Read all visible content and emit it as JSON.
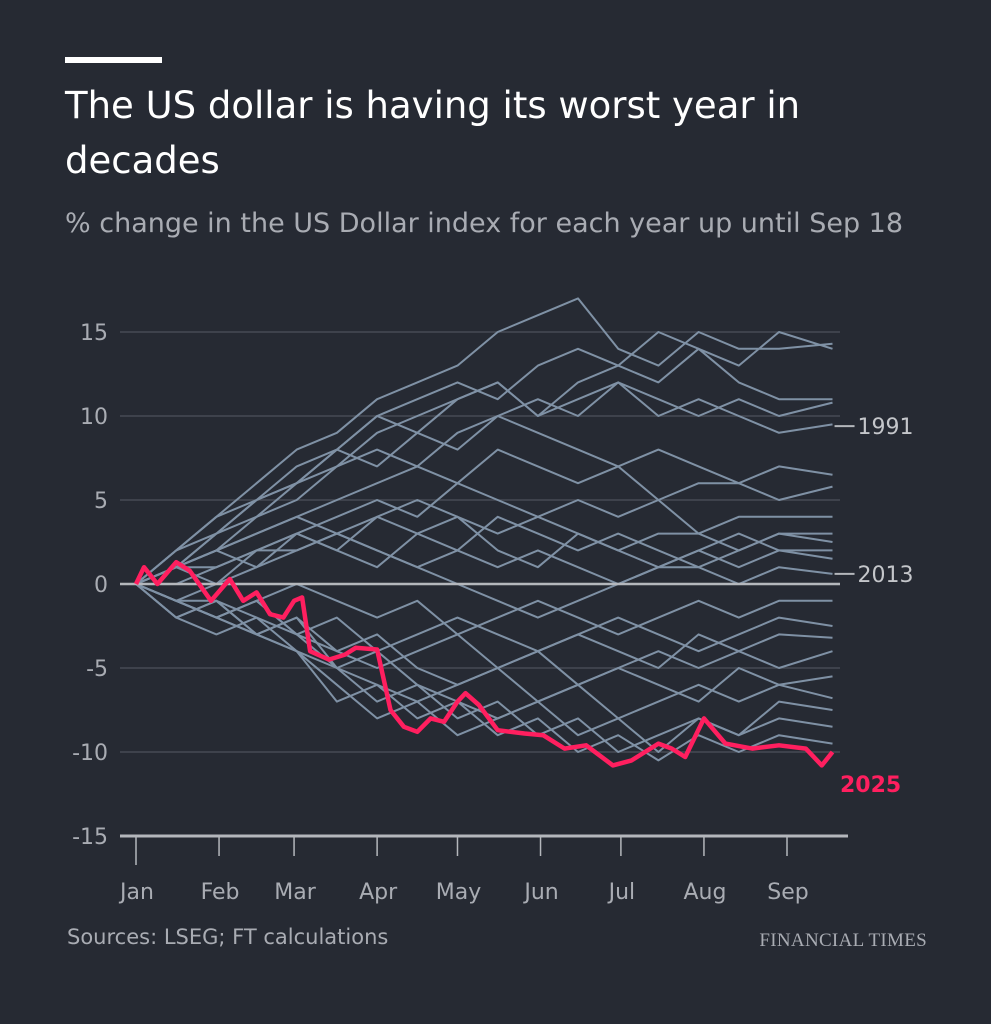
{
  "chart_data": {
    "type": "line",
    "title": "The US dollar is having its worst year in decades",
    "subtitle": "% change in the US Dollar index for each year up until Sep 18",
    "xlabel": "",
    "ylabel": "",
    "x_unit": "day of year",
    "xlim": [
      0,
      260
    ],
    "ylim": [
      -15,
      17
    ],
    "grid": true,
    "yticks": [
      15,
      10,
      5,
      0,
      -5,
      -10,
      -15
    ],
    "xticks": [
      {
        "label": "Jan",
        "day": 0
      },
      {
        "label": "Feb",
        "day": 31
      },
      {
        "label": "Mar",
        "day": 59
      },
      {
        "label": "Apr",
        "day": 90
      },
      {
        "label": "May",
        "day": 120
      },
      {
        "label": "Jun",
        "day": 151
      },
      {
        "label": "Jul",
        "day": 181
      },
      {
        "label": "Aug",
        "day": 212
      },
      {
        "label": "Sep",
        "day": 243
      }
    ],
    "other_years_x": [
      0,
      15,
      30,
      45,
      60,
      75,
      90,
      105,
      120,
      135,
      150,
      165,
      180,
      195,
      210,
      225,
      240,
      260
    ],
    "other_years": [
      {
        "name": "",
        "values": [
          0,
          2,
          4,
          6,
          8,
          9,
          11,
          12,
          13,
          15,
          16,
          17,
          14,
          13,
          15,
          14,
          14,
          14.3
        ]
      },
      {
        "name": "",
        "values": [
          0,
          1,
          3,
          5,
          6,
          8,
          10,
          11,
          12,
          11,
          13,
          14,
          13,
          15,
          14,
          13,
          15,
          14
        ]
      },
      {
        "name": "",
        "values": [
          0,
          2,
          3,
          4,
          6,
          7,
          9,
          10,
          11,
          12,
          10,
          12,
          13,
          12,
          14,
          12,
          11,
          11
        ]
      },
      {
        "name": "",
        "values": [
          0,
          1,
          2,
          4,
          5,
          7,
          8,
          7,
          9,
          10,
          11,
          10,
          12,
          11,
          10,
          11,
          10,
          10.8
        ]
      },
      {
        "name": "1991",
        "values": [
          0,
          1,
          3,
          5,
          7,
          8,
          10,
          9,
          11,
          12,
          10,
          11,
          12,
          10,
          11,
          10,
          9,
          9.5
        ]
      },
      {
        "name": "",
        "values": [
          0,
          2,
          4,
          5,
          6,
          8,
          7,
          9,
          8,
          10,
          9,
          8,
          7,
          8,
          7,
          6,
          7,
          6.5
        ]
      },
      {
        "name": "",
        "values": [
          0,
          1,
          2,
          3,
          4,
          5,
          6,
          7,
          6,
          8,
          7,
          6,
          7,
          5,
          6,
          6,
          5,
          5.8
        ]
      },
      {
        "name": "",
        "values": [
          0,
          1,
          1,
          2,
          3,
          4,
          5,
          4,
          6,
          5,
          4,
          5,
          4,
          5,
          3,
          4,
          4,
          4
        ]
      },
      {
        "name": "",
        "values": [
          0,
          0,
          1,
          2,
          2,
          3,
          4,
          5,
          4,
          3,
          4,
          3,
          2,
          3,
          3,
          2,
          3,
          3
        ]
      },
      {
        "name": "",
        "values": [
          0,
          1,
          2,
          1,
          3,
          2,
          4,
          3,
          2,
          4,
          3,
          2,
          3,
          2,
          1,
          2,
          3,
          2.5
        ]
      },
      {
        "name": "",
        "values": [
          0,
          -1,
          0,
          2,
          3,
          2,
          1,
          3,
          4,
          2,
          1,
          3,
          2,
          1,
          2,
          3,
          2,
          2
        ]
      },
      {
        "name": "",
        "values": [
          0,
          1,
          0,
          1,
          2,
          3,
          2,
          1,
          2,
          1,
          2,
          1,
          0,
          1,
          2,
          1,
          2,
          1.5
        ]
      },
      {
        "name": "2013",
        "values": [
          0,
          1,
          2,
          3,
          4,
          3,
          2,
          1,
          0,
          -1,
          -2,
          -1,
          0,
          1,
          1,
          0,
          1,
          0.6
        ]
      },
      {
        "name": "",
        "values": [
          0,
          -1,
          -2,
          -1,
          0,
          -1,
          -2,
          -1,
          -3,
          -2,
          -1,
          -2,
          -3,
          -2,
          -1,
          -2,
          -1,
          -1
        ]
      },
      {
        "name": "",
        "values": [
          0,
          -1,
          -1,
          -2,
          -3,
          -2,
          -4,
          -3,
          -2,
          -3,
          -4,
          -3,
          -2,
          -3,
          -4,
          -3,
          -2,
          -2.5
        ]
      },
      {
        "name": "",
        "values": [
          0,
          -1,
          -2,
          -3,
          -2,
          -4,
          -5,
          -4,
          -3,
          -5,
          -4,
          -3,
          -4,
          -5,
          -3,
          -4,
          -3,
          -3.2
        ]
      },
      {
        "name": "",
        "values": [
          0,
          -1,
          -2,
          -1,
          -3,
          -4,
          -3,
          -5,
          -6,
          -5,
          -4,
          -6,
          -5,
          -4,
          -5,
          -4,
          -5,
          -4
        ]
      },
      {
        "name": "",
        "values": [
          0,
          -2,
          -1,
          -3,
          -2,
          -5,
          -6,
          -7,
          -6,
          -5,
          -7,
          -6,
          -5,
          -6,
          -7,
          -5,
          -6,
          -5.5
        ]
      },
      {
        "name": "",
        "values": [
          0,
          -1,
          -2,
          -3,
          -4,
          -5,
          -4,
          -6,
          -7,
          -8,
          -7,
          -6,
          -8,
          -7,
          -6,
          -7,
          -6,
          -6.8
        ]
      },
      {
        "name": "",
        "values": [
          0,
          -2,
          -3,
          -2,
          -4,
          -6,
          -8,
          -7,
          -9,
          -8,
          -7,
          -9,
          -8,
          -10,
          -8,
          -9,
          -7,
          -7.5
        ]
      },
      {
        "name": "",
        "values": [
          0,
          -1,
          -2,
          -1,
          -3,
          -5,
          -7,
          -6,
          -8,
          -7,
          -9,
          -8,
          -10,
          -9,
          -8,
          -9,
          -8,
          -8.5
        ]
      },
      {
        "name": "",
        "values": [
          0,
          -2,
          -1,
          -3,
          -4,
          -7,
          -6,
          -8,
          -7,
          -9,
          -8,
          -10,
          -9,
          -10.5,
          -9,
          -10,
          -9,
          -9.5
        ]
      }
    ],
    "highlight": {
      "name": "2025",
      "x": [
        0,
        3,
        8,
        15,
        20,
        28,
        35,
        40,
        45,
        50,
        55,
        59,
        62,
        65,
        72,
        78,
        82,
        90,
        95,
        100,
        105,
        110,
        115,
        120,
        123,
        128,
        135,
        145,
        152,
        160,
        168,
        178,
        185,
        195,
        200,
        205,
        212,
        220,
        230,
        240,
        250,
        256,
        260
      ],
      "values": [
        0,
        1,
        0,
        1.3,
        0.8,
        -1,
        0.3,
        -1,
        -0.5,
        -1.8,
        -2,
        -1,
        -0.8,
        -4,
        -4.5,
        -4.2,
        -3.8,
        -3.9,
        -7.5,
        -8.5,
        -8.8,
        -8,
        -8.2,
        -7,
        -6.5,
        -7.2,
        -8.7,
        -8.9,
        -9,
        -9.8,
        -9.6,
        -10.8,
        -10.5,
        -9.5,
        -9.8,
        -10.3,
        -8,
        -9.5,
        -9.8,
        -9.6,
        -9.8,
        -10.8,
        -10
      ]
    },
    "annotations": [
      "1991",
      "2013",
      "2025"
    ],
    "source": "Sources: LSEG; FT calculations",
    "brand": "FINANCIAL TIMES"
  },
  "colors": {
    "background": "#262a33",
    "other_years": "#7f91a5",
    "highlight": "#ff1f5f",
    "text": "#a9acb3"
  }
}
